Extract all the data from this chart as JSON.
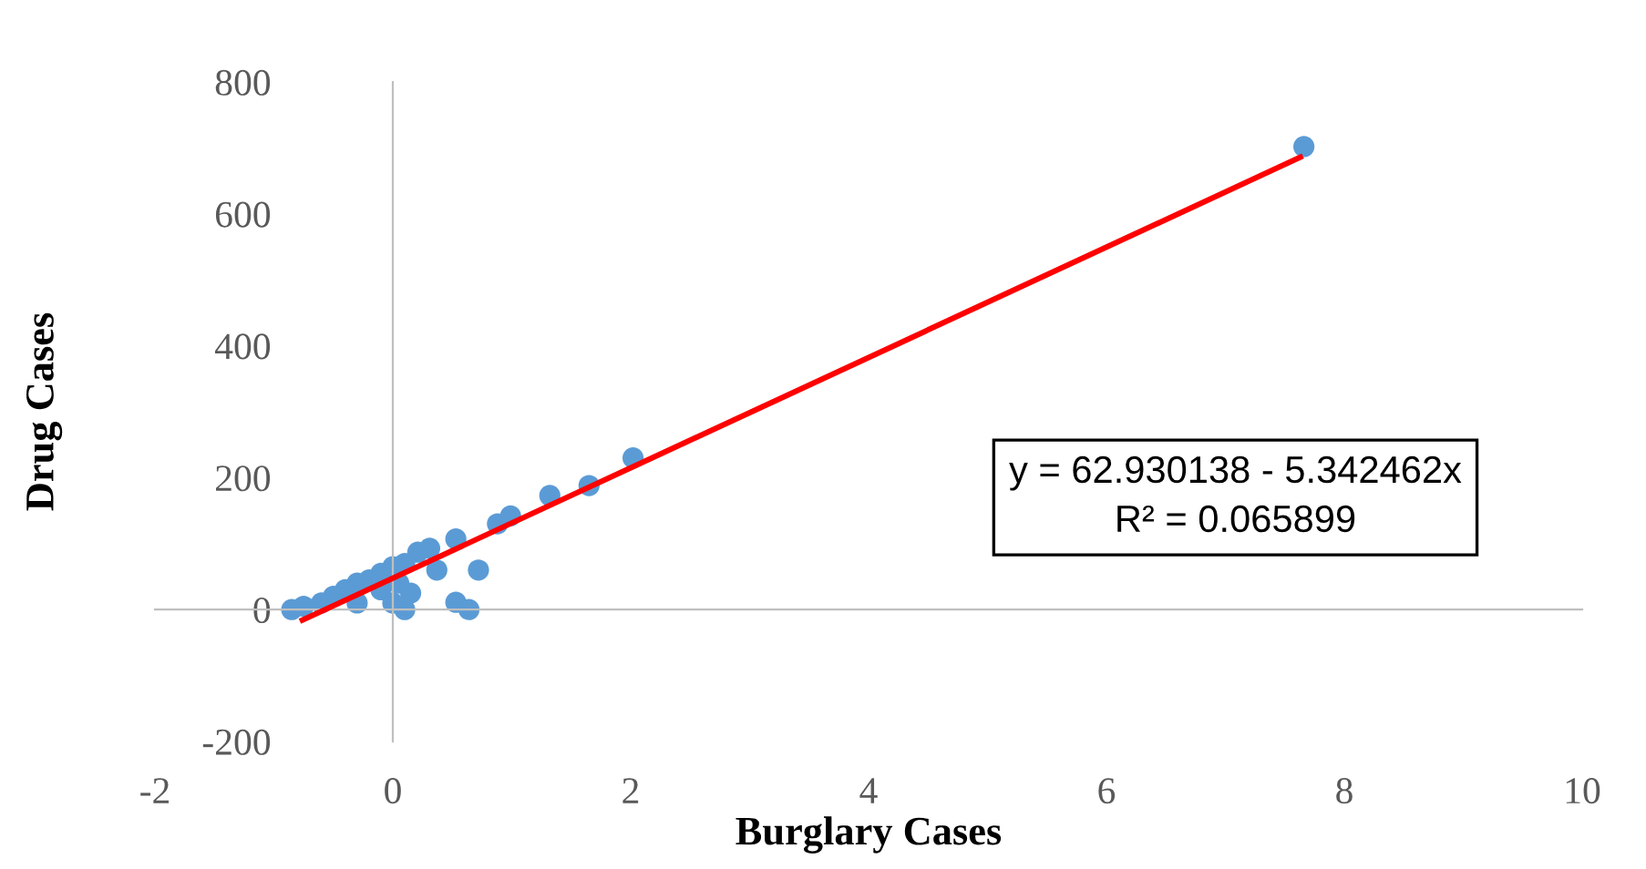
{
  "chart_data": {
    "type": "scatter",
    "xlabel": "Burglary Cases",
    "ylabel": "Drug Cases",
    "xlim": [
      -2,
      10
    ],
    "ylim": [
      -200,
      800
    ],
    "xticks": [
      -2,
      0,
      2,
      4,
      6,
      8,
      10
    ],
    "yticks": [
      -200,
      0,
      200,
      400,
      600,
      800
    ],
    "annotations": [
      "y = 62.930138 - 5.342462x",
      "R² = 0.065899"
    ],
    "series": [
      {
        "color": "#5b9bd5",
        "marker": "circle",
        "x": [
          7.66,
          2.02,
          1.65,
          1.32,
          0.99,
          0.88,
          0.72,
          0.53,
          0.53,
          0.64,
          0.31,
          0.37,
          0.21,
          -0.85,
          -0.75,
          -0.6,
          -0.5,
          -0.4,
          -0.3,
          -0.2,
          -0.1,
          0,
          0.1,
          0,
          0.15,
          -0.1,
          0.05,
          -0.3,
          0.1
        ],
        "values": [
          702,
          230,
          188,
          173,
          142,
          130,
          60,
          107,
          11,
          0,
          93,
          60,
          87,
          0,
          5,
          10,
          20,
          30,
          40,
          45,
          55,
          65,
          70,
          10,
          25,
          30,
          40,
          10,
          0
        ]
      },
      {
        "type": "line",
        "color": "#ff0000",
        "x": [
          -0.76,
          7.63
        ],
        "values": [
          -16,
          686
        ]
      }
    ]
  }
}
